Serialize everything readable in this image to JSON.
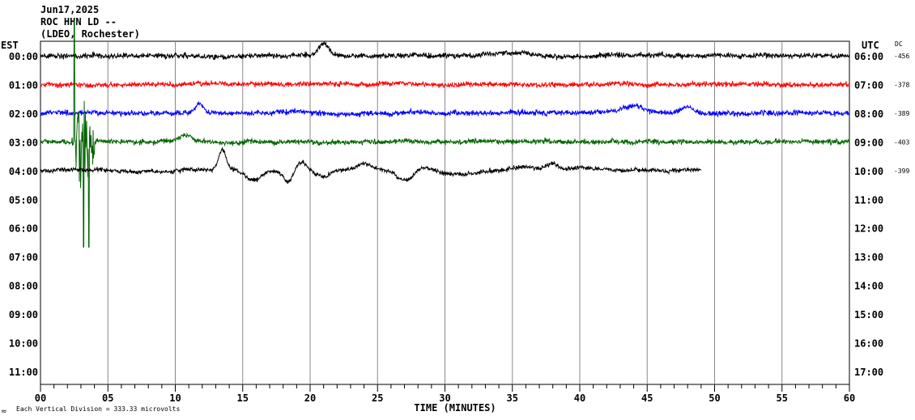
{
  "header": {
    "date": "Jun17,2025",
    "station": "ROC HHN LD --",
    "network": "(LDEO, Rochester)"
  },
  "left_axis_title": "EST",
  "right_axis_title": "UTC",
  "dc_title": "DC",
  "footer": {
    "logo": "≈",
    "scale_text": "Each Vertical Division =  333.33 microvolts"
  },
  "chart_data": {
    "type": "line",
    "title": "",
    "xlabel": "TIME (MINUTES)",
    "ylabel": "",
    "xlim": [
      0,
      60
    ],
    "x_ticks": [
      "00",
      "05",
      "10",
      "15",
      "20",
      "25",
      "30",
      "35",
      "40",
      "45",
      "50",
      "55",
      "60"
    ],
    "grid": true,
    "rows_est": [
      "00:00",
      "01:00",
      "02:00",
      "03:00",
      "04:00",
      "05:00",
      "06:00",
      "07:00",
      "08:00",
      "09:00",
      "10:00",
      "11:00"
    ],
    "rows_utc": [
      "06:00",
      "07:00",
      "08:00",
      "09:00",
      "10:00",
      "11:00",
      "12:00",
      "13:00",
      "14:00",
      "15:00",
      "16:00",
      "17:00"
    ],
    "series": [
      {
        "row": 0,
        "color": "#000000",
        "dc": "-456",
        "end_minute": 60
      },
      {
        "row": 1,
        "color": "#ff0000",
        "dc": "-378",
        "end_minute": 60
      },
      {
        "row": 2,
        "color": "#0000ff",
        "dc": "-389",
        "end_minute": 60
      },
      {
        "row": 3,
        "color": "#006400",
        "dc": "-403",
        "end_minute": 60
      },
      {
        "row": 4,
        "color": "#000000",
        "dc": "-399",
        "end_minute": 49
      }
    ],
    "events": [
      {
        "minute": 2.5,
        "note": "large spike on 03:00 trace"
      },
      {
        "minute": 13.5,
        "note": "spike on 04:00 trace"
      },
      {
        "minute": 21,
        "note": "spike on 00:00 trace"
      }
    ]
  }
}
